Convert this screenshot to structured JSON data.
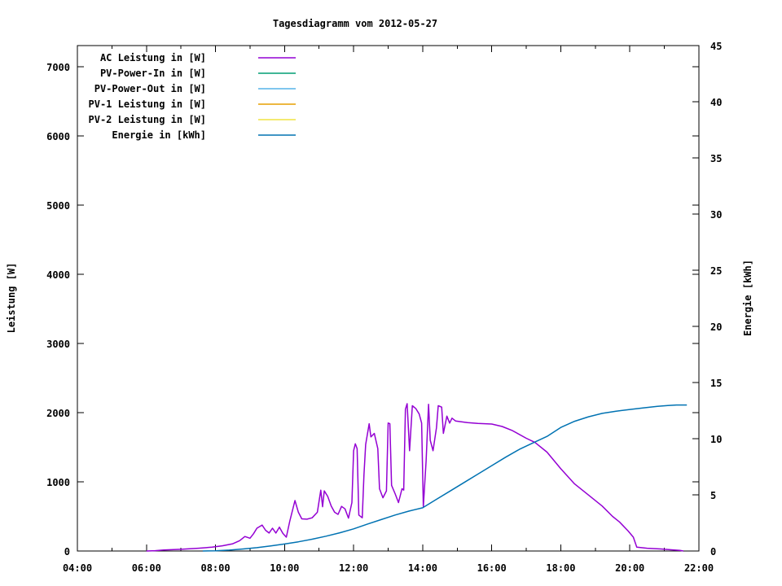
{
  "chart_data": {
    "type": "line",
    "title": "Tagesdiagramm vom 2012-05-27",
    "legend_position": "top-left-inside",
    "grid": false,
    "x_axis": {
      "min_hour": 4,
      "max_hour": 22,
      "major_tick_step_hours": 2,
      "minor_tick_step_hours": 1,
      "tick_labels": [
        "04:00",
        "06:00",
        "08:00",
        "10:00",
        "12:00",
        "14:00",
        "16:00",
        "18:00",
        "20:00",
        "22:00"
      ]
    },
    "y_left": {
      "label": "Leistung [W]",
      "min": 0,
      "max": 7306,
      "tick_step": 1000,
      "ticks": [
        0,
        1000,
        2000,
        3000,
        4000,
        5000,
        6000,
        7000
      ]
    },
    "y_right": {
      "label": "Energie [kWh]",
      "min": 0,
      "max": 45,
      "tick_step": 5,
      "ticks": [
        0,
        5,
        10,
        15,
        20,
        25,
        30,
        35,
        40,
        45
      ]
    },
    "series": [
      {
        "name": "AC Leistung in [W]",
        "color": "#9400d3",
        "axis": "left",
        "points": [
          [
            6.0,
            0
          ],
          [
            6.25,
            5
          ],
          [
            6.5,
            15
          ],
          [
            7.0,
            25
          ],
          [
            7.5,
            40
          ],
          [
            7.9,
            55
          ],
          [
            8.2,
            75
          ],
          [
            8.5,
            105
          ],
          [
            8.7,
            150
          ],
          [
            8.85,
            210
          ],
          [
            9.0,
            185
          ],
          [
            9.1,
            250
          ],
          [
            9.2,
            330
          ],
          [
            9.35,
            375
          ],
          [
            9.45,
            300
          ],
          [
            9.55,
            260
          ],
          [
            9.65,
            330
          ],
          [
            9.75,
            260
          ],
          [
            9.85,
            345
          ],
          [
            9.95,
            255
          ],
          [
            10.05,
            200
          ],
          [
            10.15,
            430
          ],
          [
            10.3,
            730
          ],
          [
            10.4,
            560
          ],
          [
            10.5,
            465
          ],
          [
            10.65,
            460
          ],
          [
            10.8,
            480
          ],
          [
            10.95,
            560
          ],
          [
            11.05,
            880
          ],
          [
            11.1,
            640
          ],
          [
            11.15,
            870
          ],
          [
            11.25,
            790
          ],
          [
            11.35,
            650
          ],
          [
            11.45,
            560
          ],
          [
            11.55,
            530
          ],
          [
            11.65,
            645
          ],
          [
            11.75,
            610
          ],
          [
            11.85,
            475
          ],
          [
            11.95,
            700
          ],
          [
            12.0,
            1450
          ],
          [
            12.05,
            1550
          ],
          [
            12.1,
            1480
          ],
          [
            12.15,
            520
          ],
          [
            12.25,
            480
          ],
          [
            12.3,
            1100
          ],
          [
            12.35,
            1540
          ],
          [
            12.45,
            1840
          ],
          [
            12.5,
            1650
          ],
          [
            12.6,
            1700
          ],
          [
            12.7,
            1480
          ],
          [
            12.75,
            900
          ],
          [
            12.85,
            770
          ],
          [
            12.95,
            870
          ],
          [
            13.0,
            1850
          ],
          [
            13.05,
            1840
          ],
          [
            13.1,
            950
          ],
          [
            13.2,
            830
          ],
          [
            13.3,
            700
          ],
          [
            13.4,
            900
          ],
          [
            13.45,
            880
          ],
          [
            13.5,
            2050
          ],
          [
            13.55,
            2130
          ],
          [
            13.62,
            1450
          ],
          [
            13.7,
            2100
          ],
          [
            13.8,
            2060
          ],
          [
            13.9,
            1980
          ],
          [
            13.97,
            1850
          ],
          [
            14.02,
            640
          ],
          [
            14.1,
            1300
          ],
          [
            14.17,
            2120
          ],
          [
            14.22,
            1600
          ],
          [
            14.3,
            1450
          ],
          [
            14.4,
            1780
          ],
          [
            14.45,
            2100
          ],
          [
            14.55,
            2080
          ],
          [
            14.6,
            1700
          ],
          [
            14.7,
            1950
          ],
          [
            14.78,
            1850
          ],
          [
            14.85,
            1920
          ],
          [
            14.95,
            1880
          ],
          [
            15.1,
            1870
          ],
          [
            15.3,
            1855
          ],
          [
            15.6,
            1845
          ],
          [
            16.0,
            1835
          ],
          [
            16.3,
            1800
          ],
          [
            16.6,
            1740
          ],
          [
            17.0,
            1630
          ],
          [
            17.25,
            1570
          ],
          [
            17.6,
            1430
          ],
          [
            18.0,
            1190
          ],
          [
            18.4,
            970
          ],
          [
            18.8,
            810
          ],
          [
            19.2,
            650
          ],
          [
            19.5,
            500
          ],
          [
            19.7,
            420
          ],
          [
            19.95,
            290
          ],
          [
            20.1,
            200
          ],
          [
            20.2,
            55
          ],
          [
            20.5,
            40
          ],
          [
            20.9,
            30
          ],
          [
            21.2,
            18
          ],
          [
            21.45,
            8
          ],
          [
            21.55,
            0
          ]
        ]
      },
      {
        "name": "PV-Power-In in [W]",
        "color": "#009e73",
        "axis": "left",
        "points": []
      },
      {
        "name": "PV-Power-Out in [W]",
        "color": "#56b4e9",
        "axis": "left",
        "points": []
      },
      {
        "name": "PV-1 Leistung in [W]",
        "color": "#e69f00",
        "axis": "left",
        "points": []
      },
      {
        "name": "PV-2 Leistung in [W]",
        "color": "#f0e442",
        "axis": "left",
        "points": []
      },
      {
        "name": "Energie in [kWh]",
        "color": "#0072b2",
        "axis": "right",
        "points": [
          [
            7.63,
            0
          ],
          [
            8.0,
            0.02
          ],
          [
            8.4,
            0.08
          ],
          [
            8.8,
            0.18
          ],
          [
            9.2,
            0.3
          ],
          [
            9.6,
            0.45
          ],
          [
            10.0,
            0.62
          ],
          [
            10.4,
            0.82
          ],
          [
            10.8,
            1.05
          ],
          [
            11.2,
            1.32
          ],
          [
            11.6,
            1.62
          ],
          [
            12.0,
            1.97
          ],
          [
            12.4,
            2.4
          ],
          [
            12.8,
            2.8
          ],
          [
            13.2,
            3.2
          ],
          [
            13.6,
            3.55
          ],
          [
            14.0,
            3.85
          ],
          [
            14.4,
            4.6
          ],
          [
            14.8,
            5.35
          ],
          [
            15.2,
            6.1
          ],
          [
            15.6,
            6.85
          ],
          [
            16.0,
            7.6
          ],
          [
            16.4,
            8.35
          ],
          [
            16.8,
            9.05
          ],
          [
            17.25,
            9.7
          ],
          [
            17.6,
            10.2
          ],
          [
            18.0,
            11.0
          ],
          [
            18.4,
            11.55
          ],
          [
            18.8,
            11.95
          ],
          [
            19.2,
            12.25
          ],
          [
            19.6,
            12.45
          ],
          [
            20.0,
            12.6
          ],
          [
            20.4,
            12.75
          ],
          [
            20.8,
            12.88
          ],
          [
            21.1,
            12.95
          ],
          [
            21.35,
            13.0
          ],
          [
            21.65,
            13.0
          ]
        ]
      }
    ],
    "colors": {
      "background": "#ffffff",
      "axis": "#000000",
      "text": "#000000"
    }
  }
}
